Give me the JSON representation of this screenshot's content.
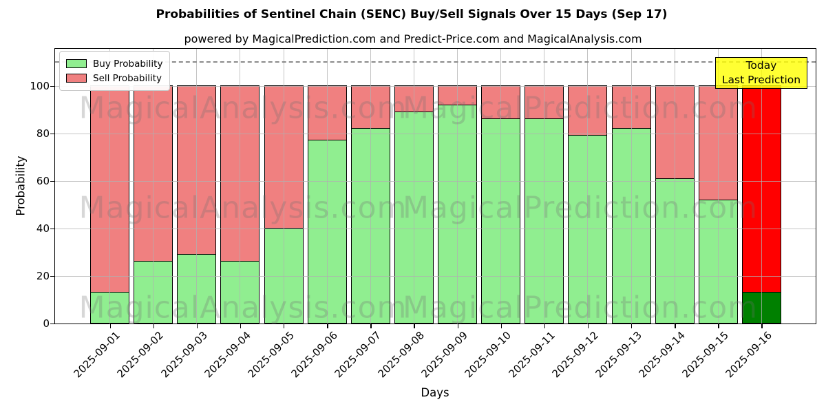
{
  "title": "Probabilities of Sentinel Chain (SENC) Buy/Sell Signals Over 15 Days (Sep 17)",
  "subtitle": "powered by MagicalPrediction.com and Predict-Price.com and MagicalAnalysis.com",
  "axes": {
    "xlabel": "Days",
    "ylabel": "Probability",
    "yticks": [
      0,
      20,
      40,
      60,
      80,
      100
    ],
    "ylim": [
      0,
      116
    ],
    "grid": true
  },
  "legend": {
    "position": "upper-left",
    "items": [
      {
        "label": "Buy Probability",
        "color": "#90EE90"
      },
      {
        "label": "Sell Probability",
        "color": "#F08080"
      }
    ]
  },
  "annotation_box": {
    "line1": "Today",
    "line2": "Last Prediction",
    "bg_color": "#FFFF00"
  },
  "watermarks": [
    "MagicalAnalysis.com",
    "MagicalPrediction.com"
  ],
  "chart_data": {
    "type": "bar",
    "stacked": true,
    "categories": [
      "2025-09-01",
      "2025-09-02",
      "2025-09-03",
      "2025-09-04",
      "2025-09-05",
      "2025-09-06",
      "2025-09-07",
      "2025-09-08",
      "2025-09-09",
      "2025-09-10",
      "2025-09-11",
      "2025-09-12",
      "2025-09-13",
      "2025-09-14",
      "2025-09-15",
      "2025-09-16"
    ],
    "series": [
      {
        "name": "Buy Probability",
        "values": [
          13,
          26,
          29,
          26,
          40,
          77,
          82,
          89,
          92,
          86,
          86,
          79,
          82,
          61,
          52,
          13
        ]
      },
      {
        "name": "Sell Probability",
        "values": [
          87,
          74,
          71,
          74,
          60,
          23,
          18,
          11,
          8,
          14,
          14,
          21,
          18,
          39,
          48,
          87
        ]
      }
    ],
    "colors": {
      "buy": "#90EE90",
      "sell": "#F08080",
      "buy_today": "#008000",
      "sell_today": "#FF0000",
      "bar_edge": "#000000"
    },
    "today_category": "2025-09-16",
    "dashed_guide_value": 110,
    "bar_total": 100
  }
}
